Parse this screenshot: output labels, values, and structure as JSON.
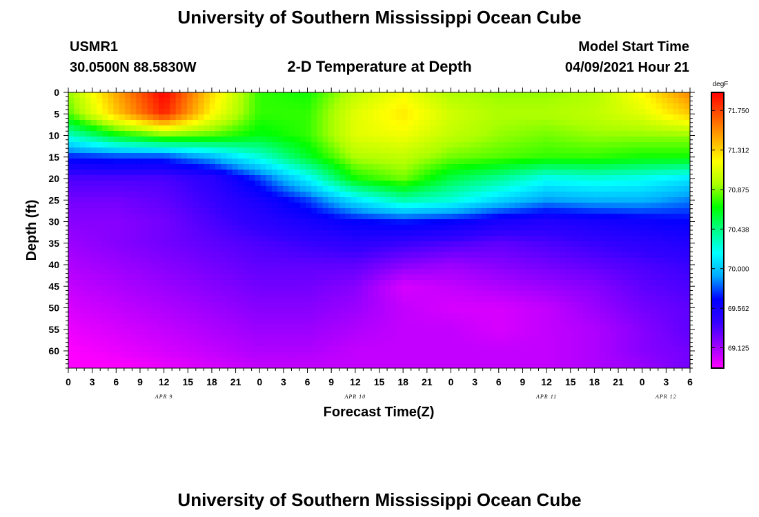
{
  "header": {
    "title": "University of Southern Mississippi Ocean Cube",
    "station": "USMR1",
    "location": "30.0500N  88.5830W",
    "model_start_label": "Model Start Time",
    "model_start_value": "04/09/2021 Hour 21",
    "footer_title": "University of Southern Mississippi Ocean Cube"
  },
  "chart_data": {
    "type": "heatmap",
    "title": "2-D Temperature at Depth",
    "xlabel": "Forecast Time(Z)",
    "ylabel": "Depth (ft)",
    "x_hours": [
      0,
      3,
      6,
      9,
      12,
      15,
      18,
      21,
      0,
      3,
      6,
      9,
      12,
      15,
      18,
      21,
      0,
      3,
      6,
      9,
      12,
      15,
      18,
      21,
      0,
      3,
      6
    ],
    "x_tick_labels": [
      "0",
      "3",
      "6",
      "9",
      "12",
      "15",
      "18",
      "21",
      "0",
      "3",
      "6",
      "9",
      "12",
      "15",
      "18",
      "21",
      "0",
      "3",
      "6",
      "9",
      "12",
      "15",
      "18",
      "21",
      "0",
      "3",
      "6"
    ],
    "x_range_hours": [
      0,
      78
    ],
    "day_labels": [
      {
        "label": "APR 9",
        "hour": 12
      },
      {
        "label": "APR 10",
        "hour": 36
      },
      {
        "label": "APR 11",
        "hour": 60
      },
      {
        "label": "APR 12",
        "hour": 75
      }
    ],
    "y_ticks": [
      0,
      5,
      10,
      15,
      20,
      25,
      30,
      35,
      40,
      45,
      50,
      55,
      60
    ],
    "y_tick_labels": [
      "0",
      "5",
      "10",
      "15",
      "20",
      "25",
      "30",
      "35",
      "40",
      "45",
      "50",
      "55",
      "60"
    ],
    "y_range": [
      0,
      64
    ],
    "colorbar": {
      "unit": "degF",
      "min": 68.9,
      "max": 71.95,
      "tick_values": [
        71.75,
        71.312,
        70.875,
        70.438,
        70.0,
        69.562,
        69.125
      ],
      "tick_labels": [
        "71.750",
        "71.312",
        "70.875",
        "70.438",
        "70.000",
        "69.562",
        "69.125"
      ],
      "colors": [
        "#ff00ff",
        "#9900ff",
        "#3300ff",
        "#0000ff",
        "#00aaff",
        "#00ffff",
        "#00ff88",
        "#00ff00",
        "#aaff00",
        "#ffff00",
        "#ffaa00",
        "#ff5500",
        "#ff0000"
      ]
    },
    "field": {
      "time_hours": [
        0,
        6,
        12,
        18,
        24,
        30,
        36,
        42,
        48,
        54,
        60,
        66,
        72,
        78
      ],
      "depth_ft": [
        0,
        5,
        10,
        15,
        20,
        25,
        30,
        35,
        40,
        45,
        50,
        55,
        60,
        64
      ],
      "temperature_degF": [
        [
          70.9,
          71.45,
          71.95,
          71.3,
          70.75,
          70.7,
          71.0,
          71.15,
          70.95,
          70.9,
          70.9,
          70.95,
          71.2,
          71.55
        ],
        [
          70.8,
          71.35,
          71.85,
          71.2,
          70.75,
          70.75,
          71.1,
          71.25,
          71.05,
          70.95,
          70.95,
          71.0,
          71.1,
          71.35
        ],
        [
          70.3,
          70.65,
          70.85,
          70.8,
          70.65,
          70.75,
          71.1,
          71.15,
          71.0,
          70.9,
          70.85,
          70.9,
          70.9,
          70.9
        ],
        [
          69.7,
          69.75,
          69.75,
          69.95,
          70.25,
          70.6,
          70.95,
          71.0,
          70.85,
          70.8,
          70.75,
          70.75,
          70.7,
          70.7
        ],
        [
          69.35,
          69.35,
          69.35,
          69.45,
          69.75,
          70.15,
          70.7,
          70.85,
          70.55,
          70.4,
          70.2,
          70.25,
          70.2,
          70.1
        ],
        [
          69.25,
          69.25,
          69.3,
          69.4,
          69.55,
          69.75,
          70.1,
          70.35,
          70.25,
          70.05,
          69.9,
          69.95,
          69.95,
          69.85
        ],
        [
          69.2,
          69.2,
          69.25,
          69.35,
          69.45,
          69.55,
          69.65,
          69.7,
          69.65,
          69.55,
          69.5,
          69.55,
          69.6,
          69.65
        ],
        [
          69.15,
          69.2,
          69.25,
          69.3,
          69.35,
          69.4,
          69.45,
          69.4,
          69.35,
          69.3,
          69.35,
          69.4,
          69.45,
          69.5
        ],
        [
          69.1,
          69.15,
          69.2,
          69.25,
          69.3,
          69.3,
          69.3,
          69.2,
          69.15,
          69.2,
          69.25,
          69.3,
          69.35,
          69.4
        ],
        [
          69.05,
          69.1,
          69.15,
          69.2,
          69.25,
          69.25,
          69.2,
          69.0,
          69.05,
          69.1,
          69.15,
          69.2,
          69.3,
          69.35
        ],
        [
          69.0,
          69.05,
          69.1,
          69.15,
          69.2,
          69.2,
          69.15,
          69.05,
          69.0,
          69.0,
          69.05,
          69.15,
          69.25,
          69.3
        ],
        [
          68.95,
          69.0,
          69.05,
          69.1,
          69.15,
          69.15,
          69.1,
          69.05,
          69.05,
          69.0,
          69.05,
          69.1,
          69.2,
          69.3
        ],
        [
          68.9,
          68.95,
          69.0,
          69.05,
          69.1,
          69.1,
          69.05,
          69.05,
          69.05,
          69.05,
          69.05,
          69.1,
          69.2,
          69.25
        ],
        [
          68.9,
          68.9,
          68.95,
          69.0,
          69.05,
          69.05,
          69.05,
          69.05,
          69.05,
          69.05,
          69.05,
          69.1,
          69.15,
          69.25
        ]
      ]
    }
  }
}
